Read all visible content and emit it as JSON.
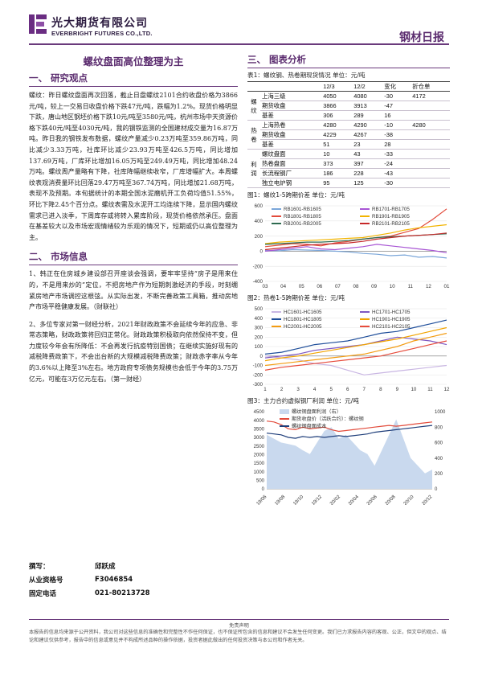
{
  "header": {
    "company_cn": "光大期货有限公司",
    "company_en": "EVERBRIGHT FUTURES CO.,LTD.",
    "report_title": "钢材日报"
  },
  "left": {
    "main_title": "螺纹盘面高位整理为主",
    "sec1_title": "一、  研究观点",
    "sec1_para": "螺纹：昨日螺纹盘面再次回落，截止日盘螺纹2101合约收盘价格为3866元/吨，较上一交易日收盘价格下跌47元/吨，跌幅为1.2%。现货价格明显下跌，唐山地区钢坯价格下跌10元/吨至3580元/吨，杭州市场中天资源价格下跌40元/吨至4030元/吨，我的钢铁监测的全国建材成交量为16.87万吨。昨日我的钢铁发布数据，螺纹产量减少0.23万吨至359.86万吨，同比减少3.33万吨，社库环比减少23.93万吨至426.5万吨，同比增加137.69万吨，厂库环比增加16.05万吨至249.49万吨，同比增加48.24万吨。螺纹周产量略有下降，社库降幅继续收窄，厂库增幅扩大。本周螺纹表观消费量环比回落29.47万吨至367.74万吨，同比增加21.68万吨，表现不及预期。本旬据统计的本期全国水泥磨机开工负荷均值51.55%，环比下降2.45个百分点。螺纹表需及水泥开工均连续下降，显示国内螺纹需求已进入淡季，下周库存或将转入累库阶段，现货价格依然承压。盘面在基差较大以及市场宏观情绪较为乐观的情况下，短期或仍以高位整理为主。",
    "sec2_title": "二、  市场信息",
    "news1": "1、韩正在住房城乡建设部召开座谈会强调，要牢牢坚持“房子是用来住的，不是用来炒的”定位，不把房地产作为短期刺激经济的手段，时刻绷紧房地产市场调控这根弦。从实际出发，不断完善政策工具箱，推动房地产市场平稳健康发展。（财联社）",
    "news2": "2、多位专家对第一财经分析，2021年财政政策不会延续今年的应急、非常态策略，财政政策将回归正常化。财政政策积极取向依然保持不变，但力度较今年会有所降低：不会再发行抗疫特别国债；在继续实施好现有的减税降费政策下，不会出台新的大规模减税降费政策；财政赤字率从今年的3.6%以上降至3%左右。地方政府专项债务规模也会低于今年的3.75万亿元，可能在3万亿元左右。（第一财经）"
  },
  "contact": {
    "author_label": "撰写：",
    "author_name": "邱跃成",
    "qual_label": "从业资格号",
    "qual_value": "F3046854",
    "phone_label": "固定电话",
    "phone_value": "021-80213728"
  },
  "right": {
    "sec3_title": "三、  图表分析",
    "table_caption": "表1：螺纹钢、热卷期现货情况  单位：元/吨",
    "table_headers": [
      "",
      "",
      "12/3",
      "12/2",
      "变化",
      "折仓单"
    ],
    "table_groups": [
      {
        "group": "螺纹",
        "rows": [
          [
            "上海三级",
            "4050",
            "4080",
            "-30",
            "4172"
          ],
          [
            "期货收盘",
            "3866",
            "3913",
            "-47",
            ""
          ],
          [
            "基差",
            "306",
            "289",
            "16",
            ""
          ]
        ]
      },
      {
        "group": "热卷",
        "rows": [
          [
            "上海热卷",
            "4280",
            "4290",
            "-10",
            "4280"
          ],
          [
            "期货收盘",
            "4229",
            "4267",
            "-38",
            ""
          ],
          [
            "基差",
            "51",
            "23",
            "28",
            ""
          ]
        ]
      },
      {
        "group": "利润",
        "rows": [
          [
            "螺纹盘面",
            "10",
            "43",
            "-33",
            ""
          ],
          [
            "热卷盘面",
            "373",
            "397",
            "-24",
            ""
          ],
          [
            "长流程钢厂",
            "186",
            "228",
            "-43",
            ""
          ],
          [
            "独立电炉钢",
            "95",
            "125",
            "-30",
            ""
          ]
        ]
      }
    ],
    "fig1_caption": "图1：螺纹1-5跨期价差  单位：元/吨",
    "fig2_caption": "图2：热卷1-5跨期价差  单位：元/吨",
    "fig3_caption": "图3：主力合约虚拟钢厂利润  单位：元/吨"
  },
  "chart_data": [
    {
      "type": "line",
      "title": "螺纹1-5跨期价差",
      "ylim": [
        -400,
        600
      ],
      "yticks": [
        -400,
        -200,
        0,
        200,
        400,
        600
      ],
      "xticks": [
        "03",
        "04",
        "05",
        "06",
        "07",
        "08",
        "09",
        "10",
        "11",
        "12",
        "01"
      ],
      "series": [
        {
          "name": "RB1601-RB1605",
          "color": "#7aa6d9",
          "values": [
            10,
            5,
            20,
            15,
            10,
            0,
            -10,
            -30,
            -40,
            -60,
            -50,
            -80,
            -70,
            -90
          ]
        },
        {
          "name": "RB1701-RB1705",
          "color": "#a855d4",
          "values": [
            0,
            20,
            40,
            60,
            30,
            20,
            40,
            60,
            90,
            70,
            50,
            30,
            10,
            -20
          ]
        },
        {
          "name": "RB1801-RB1805",
          "color": "#e24b3b",
          "values": [
            60,
            80,
            100,
            90,
            70,
            110,
            130,
            160,
            180,
            200,
            250,
            300,
            420,
            560
          ]
        },
        {
          "name": "RB1901-RB1905",
          "color": "#f2b400",
          "values": [
            100,
            120,
            130,
            140,
            150,
            160,
            170,
            180,
            210,
            240,
            280,
            310,
            330,
            350
          ]
        },
        {
          "name": "RB2001-RB2005",
          "color": "#2d6a4f",
          "values": [
            90,
            100,
            110,
            120,
            120,
            130,
            140,
            160,
            180,
            190,
            200,
            210,
            220,
            230
          ]
        },
        {
          "name": "RB2101-RB2105",
          "color": "#c62828",
          "values": [
            20,
            40,
            60,
            80,
            90,
            100,
            110,
            130,
            160,
            180,
            200,
            210,
            220,
            240
          ]
        }
      ]
    },
    {
      "type": "line",
      "title": "热卷1-5跨期价差",
      "ylim": [
        -300,
        500
      ],
      "yticks": [
        -300,
        -200,
        -100,
        0,
        100,
        200,
        300,
        400,
        500
      ],
      "xticks": [
        "1",
        "2",
        "3",
        "4",
        "5",
        "6",
        "7",
        "8",
        "9",
        "10",
        "11",
        "12"
      ],
      "series": [
        {
          "name": "HC1601-HC1605",
          "color": "#c9b6e3",
          "values": [
            0,
            -20,
            -40,
            -80,
            -100,
            -150,
            -200,
            -180,
            -160,
            -140,
            -120,
            -100
          ]
        },
        {
          "name": "HC1701-HC1705",
          "color": "#7e57c2",
          "values": [
            -20,
            0,
            20,
            60,
            80,
            100,
            120,
            160,
            200,
            180,
            160,
            120
          ]
        },
        {
          "name": "HC1801-HC1805",
          "color": "#1f4e9a",
          "values": [
            20,
            40,
            80,
            120,
            140,
            160,
            200,
            240,
            260,
            300,
            340,
            380
          ]
        },
        {
          "name": "HC1901-HC1905",
          "color": "#f2a400",
          "values": [
            -50,
            -20,
            0,
            30,
            60,
            90,
            120,
            150,
            180,
            220,
            260,
            300
          ]
        },
        {
          "name": "HC2001-HC2005",
          "color": "#f39c12",
          "values": [
            -100,
            -80,
            -60,
            -40,
            -20,
            0,
            20,
            60,
            100,
            160,
            200,
            240
          ]
        },
        {
          "name": "HC2101-HC2105",
          "color": "#e74c3c",
          "values": [
            -150,
            -120,
            -100,
            -80,
            -60,
            -40,
            -20,
            0,
            40,
            80,
            120,
            160
          ]
        }
      ]
    },
    {
      "type": "line",
      "title": "主力合约虚拟钢厂利润",
      "ylim_left": [
        0,
        4500
      ],
      "yticks_left": [
        0,
        500,
        1000,
        1500,
        2000,
        2500,
        3000,
        3500,
        4000,
        4500
      ],
      "ylim_right": [
        0,
        1000
      ],
      "yticks_right": [
        0,
        200,
        400,
        600,
        800,
        1000
      ],
      "xticks": [
        "19/06",
        "19/08",
        "19/10",
        "19/12",
        "20/02",
        "20/04",
        "20/06",
        "20/08",
        "20/10",
        "20/12"
      ],
      "series": [
        {
          "name": "螺纹钢盘面利润（右）",
          "color": "#c9d9ee",
          "axis": "right",
          "values": [
            700,
            650,
            600,
            580,
            560,
            500,
            450,
            600,
            750,
            800,
            650,
            700,
            600,
            500,
            450,
            300,
            500,
            700,
            900,
            650,
            400,
            300,
            200,
            250
          ]
        },
        {
          "name": "期货收盘价（活跃合约）：螺纹钢",
          "color": "#e24b3b",
          "axis": "left",
          "values": [
            3950,
            3900,
            3750,
            3500,
            3450,
            3600,
            3500,
            3550,
            3600,
            3450,
            3350,
            3400,
            3450,
            3500,
            3550,
            3600,
            3650,
            3700,
            3650,
            3700,
            3750,
            3800,
            3850,
            3900
          ]
        },
        {
          "name": "螺纹钢盘面成本",
          "color": "#1f3e7a",
          "axis": "left",
          "values": [
            3250,
            3200,
            3150,
            3000,
            2950,
            3050,
            3000,
            3050,
            3000,
            3050,
            3100,
            3050,
            3100,
            3150,
            3200,
            3300,
            3350,
            3400,
            3450,
            3500,
            3550,
            3600,
            3650,
            3700
          ]
        }
      ]
    }
  ],
  "footer": {
    "disclaimer_title": "免责声明",
    "disclaimer_text": "本报告的信息均来源于公开资料，我公司对这些信息的准确性和完整性不作任何保证，也不保证所包含的信息和建议不会发生任何变更。我们已力求报告内容的客观、公正，但文中的观点、结论和建议仅供参考，报告中的信息或意见并不构成所述品种的操作依据，投资者据此做出的任何投资决策与本公司和作者无关。"
  }
}
